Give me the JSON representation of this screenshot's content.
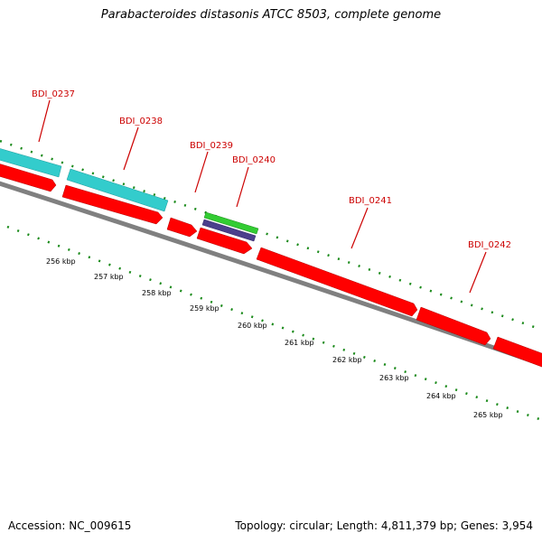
{
  "title": "Parabacteroides distasonis ATCC 8503, complete genome",
  "footer": {
    "accession": "Accession: NC_009615",
    "info": "Topology: circular; Length: 4,811,379 bp; Genes: 3,954"
  },
  "genes": [
    {
      "name": "BDI_0237"
    },
    {
      "name": "BDI_0238"
    },
    {
      "name": "BDI_0239"
    },
    {
      "name": "BDI_0240"
    },
    {
      "name": "BDI_0241"
    },
    {
      "name": "BDI_0242"
    }
  ],
  "kbp_scale": [
    "256 kbp",
    "257 kbp",
    "258 kbp",
    "259 kbp",
    "260 kbp",
    "261 kbp",
    "262 kbp",
    "263 kbp",
    "264 kbp",
    "265 kbp"
  ],
  "colors": {
    "cds": "#ff0000",
    "blast_cyan": "#33cccc",
    "feature_green": "#33cc33",
    "feature_purple": "#4b3f8c",
    "backbone": "#808080",
    "tick_green": "#1a8a1a",
    "label_red": "#cc0000"
  }
}
